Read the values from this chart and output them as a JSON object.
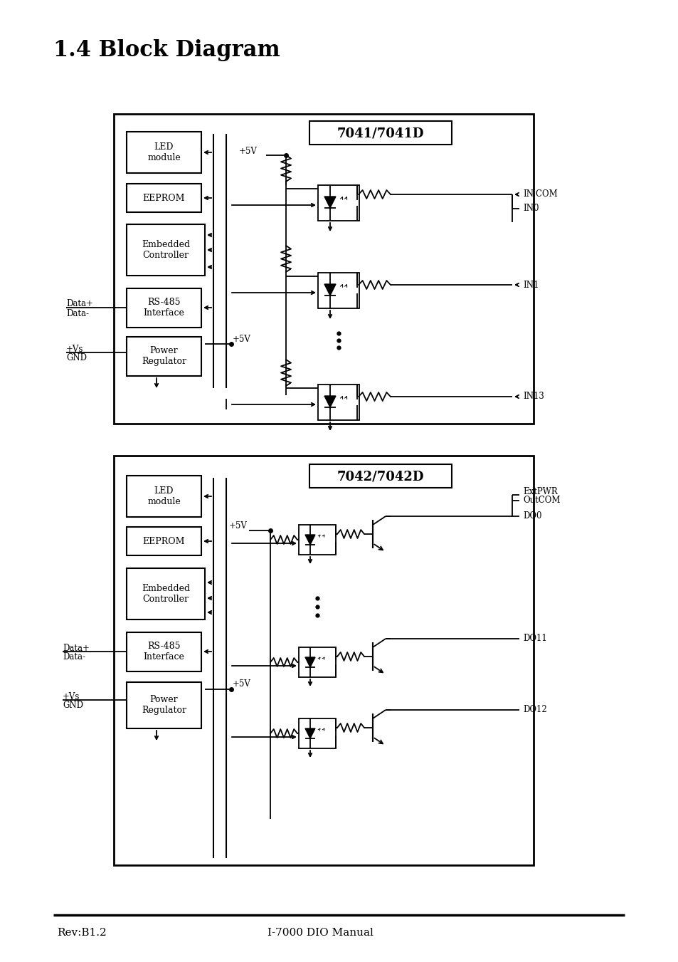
{
  "title": "1.4 Block Diagram",
  "footer_left": "Rev:B1.2",
  "footer_center": "I-7000 DIO Manual",
  "bg_color": "#ffffff",
  "diagram1_label": "7041/7041D",
  "diagram2_label": "7042/7042D"
}
